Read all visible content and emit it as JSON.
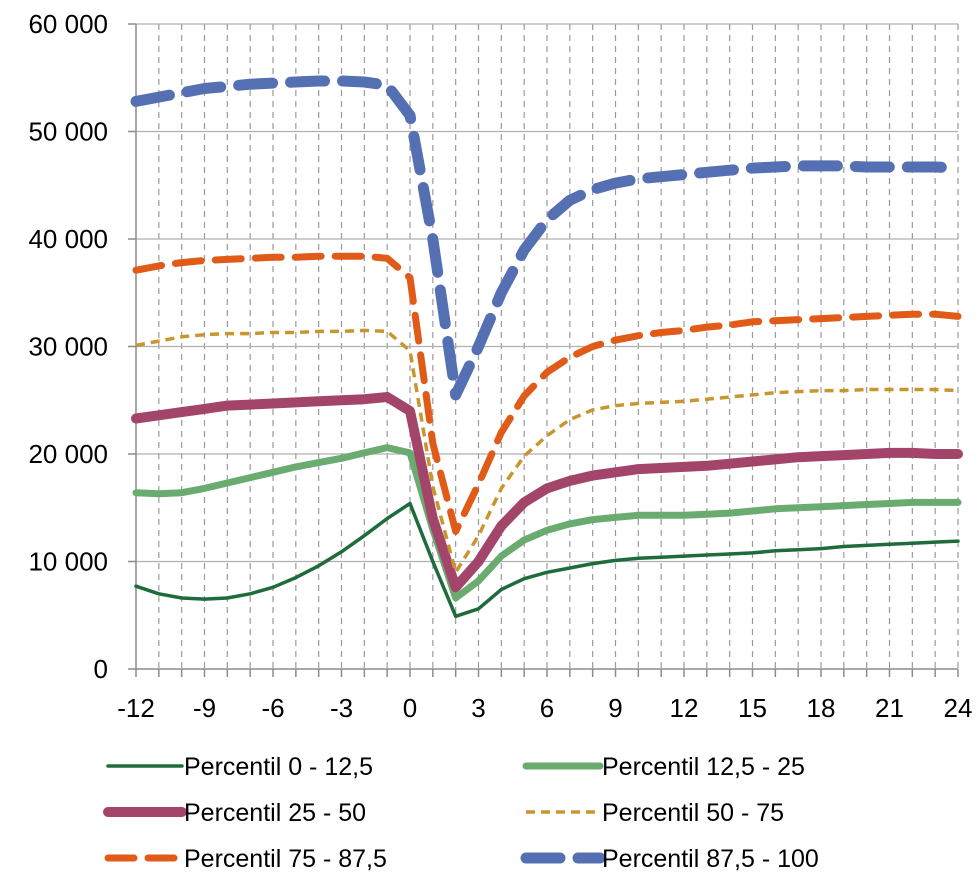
{
  "chart_data": {
    "type": "line",
    "title": "",
    "xlabel": "",
    "ylabel": "",
    "xlim": [
      -12,
      24
    ],
    "ylim": [
      0,
      60000
    ],
    "x_ticks": [
      -12,
      -9,
      -6,
      -3,
      0,
      3,
      6,
      9,
      12,
      15,
      18,
      21,
      24
    ],
    "y_ticks": [
      0,
      10000,
      20000,
      30000,
      40000,
      50000,
      60000
    ],
    "y_tick_labels": [
      "0",
      "10 000",
      "20 000",
      "30 000",
      "40 000",
      "50 000",
      "60 000"
    ],
    "grid": "dashed vertical every month, solid horizontal at y ticks",
    "legend_position": "bottom",
    "x": [
      -12,
      -11,
      -10,
      -9,
      -8,
      -7,
      -6,
      -5,
      -4,
      -3,
      -2,
      -1,
      0,
      1,
      2,
      3,
      4,
      5,
      6,
      7,
      8,
      9,
      10,
      11,
      12,
      13,
      14,
      15,
      16,
      17,
      18,
      19,
      20,
      21,
      22,
      23,
      24
    ],
    "series": [
      {
        "name": "Percentil 0 - 12,5",
        "color": "#1e6b3c",
        "style": "solid-thin",
        "values": [
          7700,
          7000,
          6600,
          6500,
          6600,
          7000,
          7600,
          8500,
          9600,
          10900,
          12400,
          14000,
          15400,
          10000,
          4900,
          5600,
          7400,
          8400,
          9000,
          9400,
          9800,
          10100,
          10300,
          10400,
          10500,
          10600,
          10700,
          10800,
          11000,
          11100,
          11200,
          11400,
          11500,
          11600,
          11700,
          11800,
          11900
        ]
      },
      {
        "name": "Percentil 12,5 - 25",
        "color": "#6aab70",
        "style": "solid-medium",
        "values": [
          16400,
          16300,
          16400,
          16800,
          17300,
          17800,
          18300,
          18800,
          19200,
          19600,
          20100,
          20600,
          20100,
          13000,
          6600,
          8200,
          10500,
          12000,
          12900,
          13500,
          13900,
          14100,
          14300,
          14300,
          14300,
          14400,
          14500,
          14700,
          14900,
          15000,
          15100,
          15200,
          15300,
          15400,
          15500,
          15500,
          15500
        ]
      },
      {
        "name": "Percentil 25 - 50",
        "color": "#a3456a",
        "style": "solid-thick",
        "values": [
          23300,
          23600,
          23900,
          24200,
          24500,
          24600,
          24700,
          24800,
          24900,
          25000,
          25100,
          25300,
          24000,
          14000,
          7600,
          10000,
          13300,
          15500,
          16800,
          17500,
          18000,
          18300,
          18600,
          18700,
          18800,
          18900,
          19100,
          19300,
          19500,
          19700,
          19800,
          19900,
          20000,
          20100,
          20100,
          20000,
          20000
        ]
      },
      {
        "name": "Percentil 50 - 75",
        "color": "#c9952f",
        "style": "short-dash",
        "values": [
          30100,
          30500,
          30900,
          31100,
          31200,
          31200,
          31300,
          31300,
          31400,
          31400,
          31500,
          31400,
          29600,
          17000,
          9000,
          12400,
          16800,
          19800,
          21700,
          23200,
          24100,
          24500,
          24700,
          24800,
          24900,
          25100,
          25300,
          25500,
          25700,
          25800,
          25900,
          25900,
          26000,
          26000,
          26000,
          26000,
          25900
        ]
      },
      {
        "name": "Percentil 75 - 87,5",
        "color": "#e05a18",
        "style": "long-dash",
        "values": [
          37100,
          37500,
          37800,
          38000,
          38100,
          38200,
          38300,
          38300,
          38400,
          38400,
          38400,
          38200,
          36400,
          21000,
          12800,
          17200,
          22000,
          25400,
          27600,
          29000,
          30000,
          30600,
          31000,
          31300,
          31500,
          31800,
          32000,
          32300,
          32400,
          32500,
          32600,
          32700,
          32800,
          32900,
          33000,
          33000,
          32800
        ]
      },
      {
        "name": "Percentil 87,5 - 100",
        "color": "#5470b2",
        "style": "very-long-dash",
        "values": [
          52800,
          53200,
          53600,
          54000,
          54200,
          54400,
          54500,
          54600,
          54700,
          54700,
          54600,
          54300,
          51500,
          40000,
          25500,
          30000,
          35000,
          39000,
          41800,
          43600,
          44600,
          45200,
          45600,
          45800,
          46000,
          46200,
          46400,
          46600,
          46700,
          46800,
          46800,
          46800,
          46700,
          46700,
          46700,
          46700,
          46600
        ]
      }
    ]
  }
}
